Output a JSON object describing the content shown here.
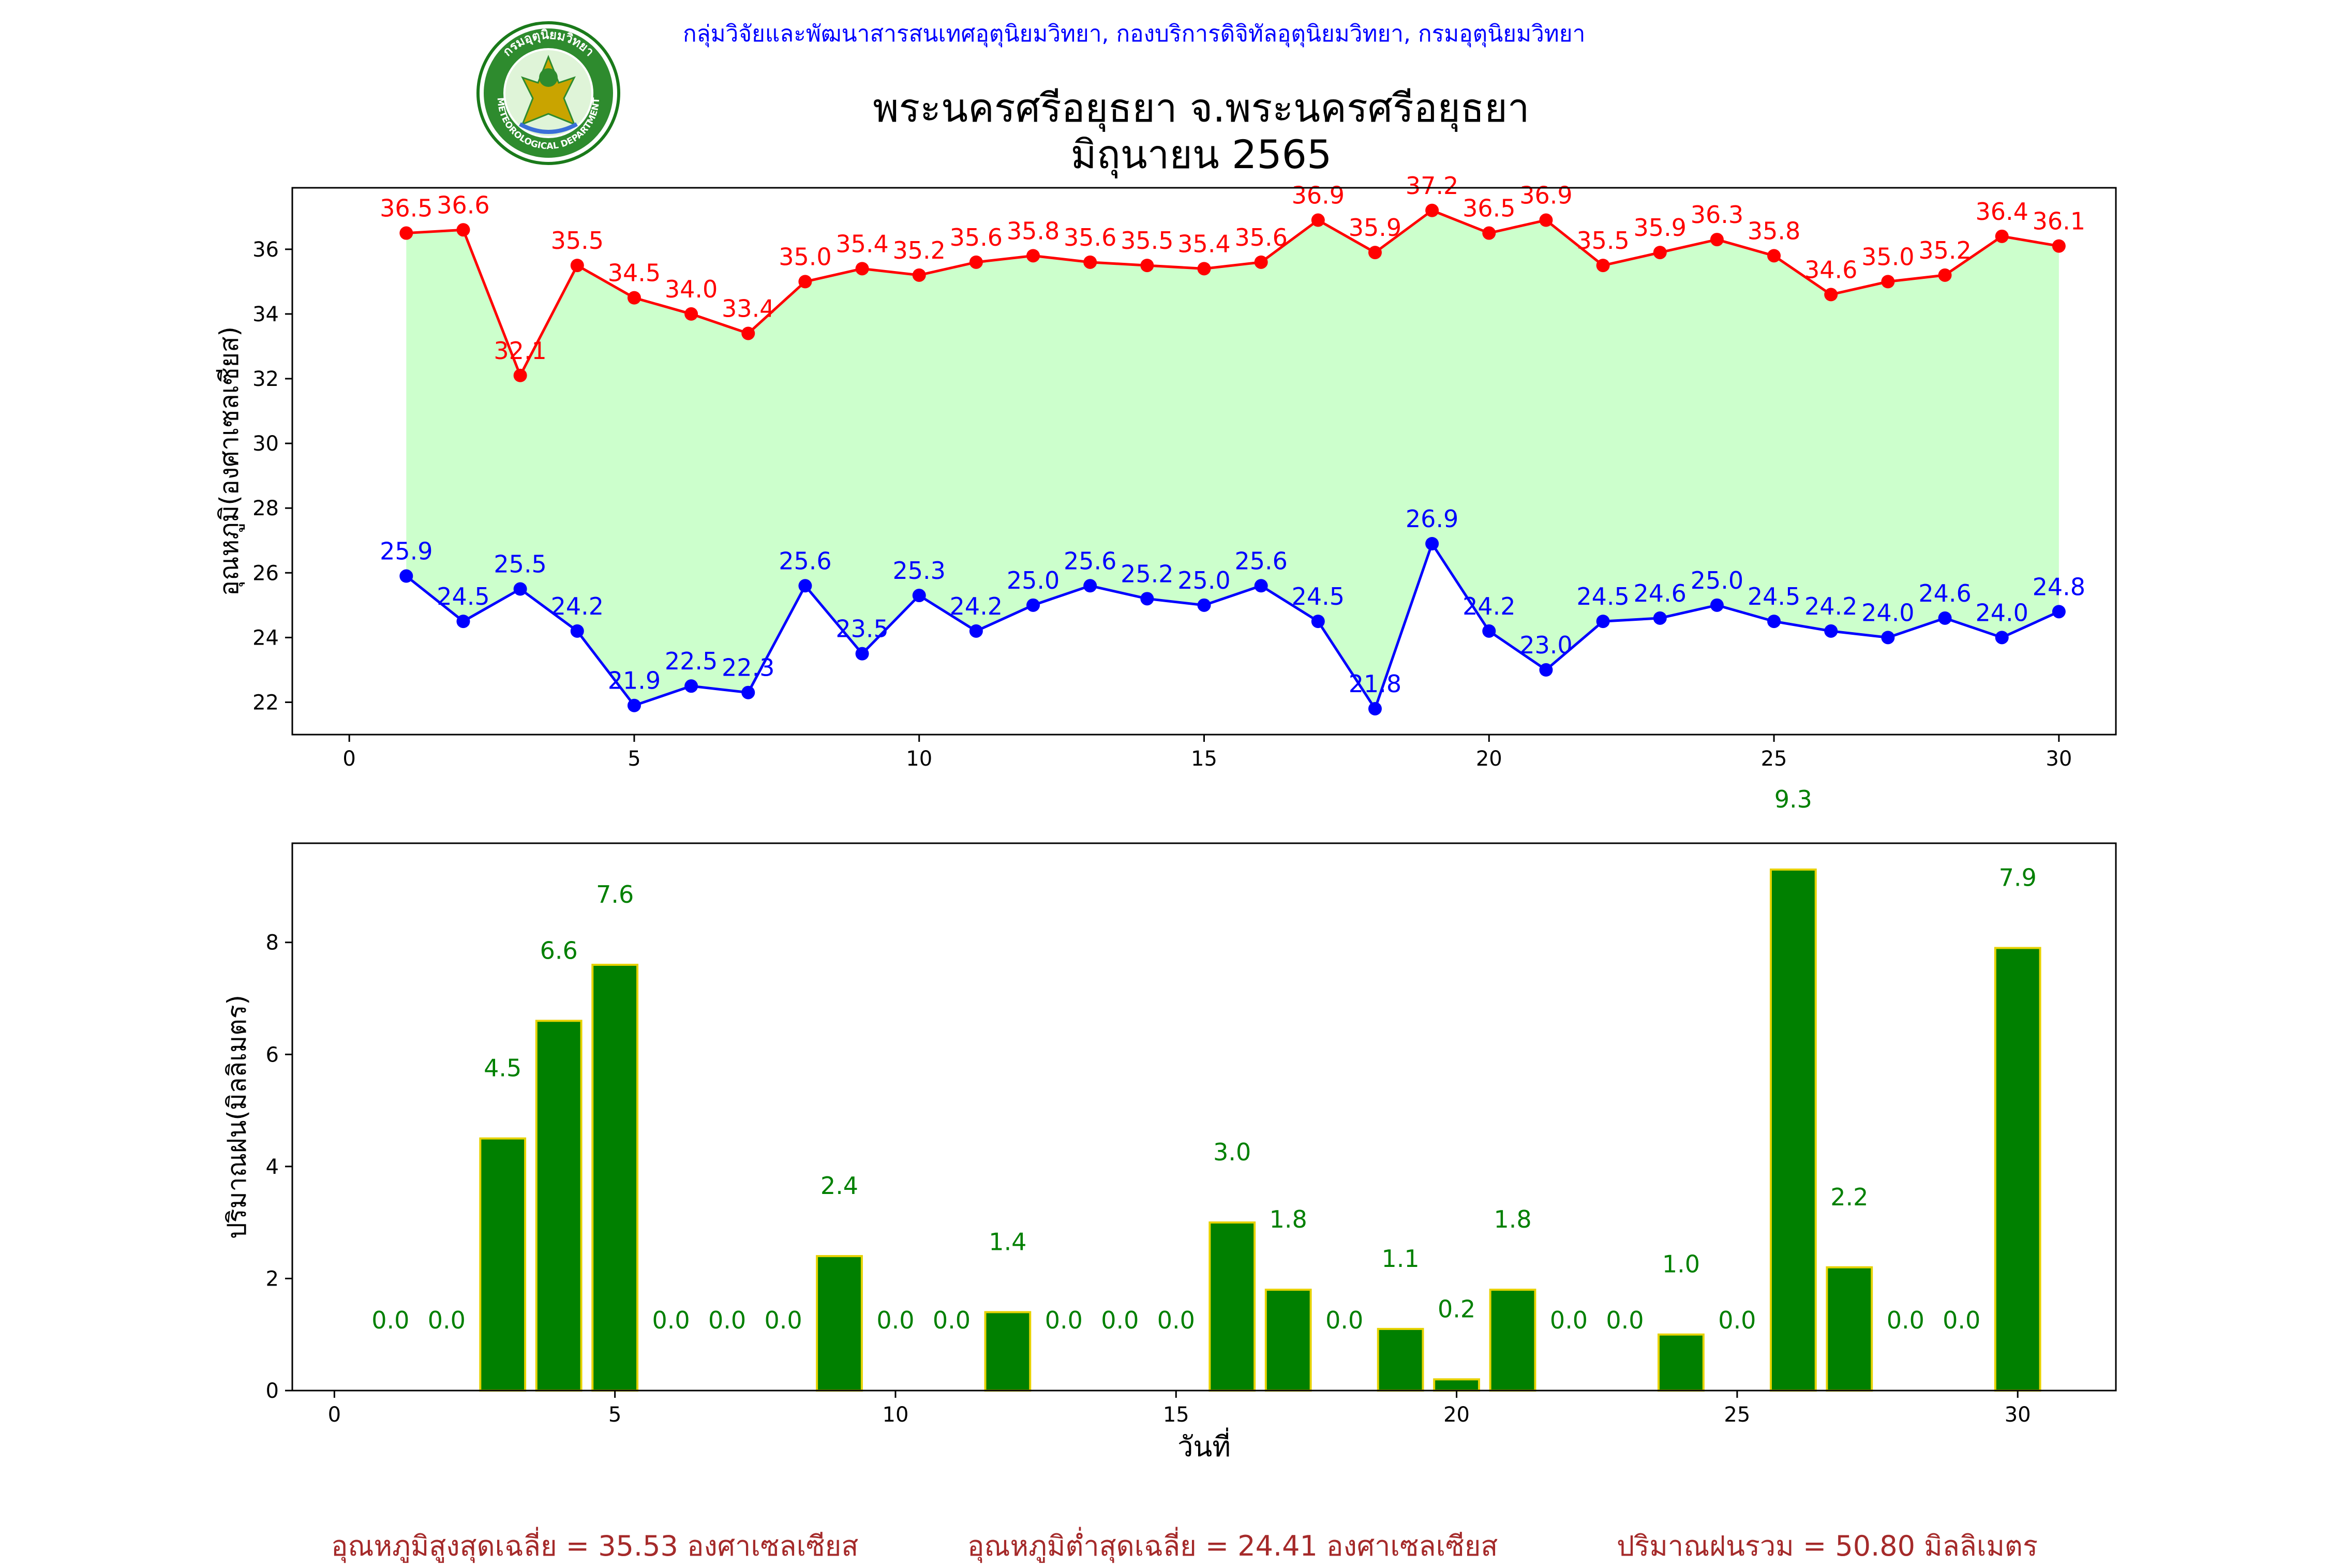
{
  "header": {
    "credit": "กลุ่มวิจัยและพัฒนาสารสนเทศอุตุนิยมวิทยา, กองบริการดิจิทัลอุตุนิยมวิทยา, กรมอุตุนิยมวิทยา",
    "logo_icon": "meteorological-department-seal-icon",
    "logo_text_top": "กรมอุตุนิยมวิทยา",
    "logo_text_bottom": "METEOROLOGICAL DEPARTMENT"
  },
  "chart_data": [
    {
      "type": "line",
      "title": "พระนครศรีอยุธยา จ.พระนครศรีอยุธยา",
      "subtitle": "มิถุนายน 2565",
      "xlabel": "",
      "ylabel": "อุณหภูมิ(องศาเซลเซียส)",
      "x": [
        1,
        2,
        3,
        4,
        5,
        6,
        7,
        8,
        9,
        10,
        11,
        12,
        13,
        14,
        15,
        16,
        17,
        18,
        19,
        20,
        21,
        22,
        23,
        24,
        25,
        26,
        27,
        28,
        29,
        30
      ],
      "xlim": [
        -1,
        31
      ],
      "ylim": [
        21,
        37.9
      ],
      "xticks": [
        0,
        5,
        10,
        15,
        20,
        25,
        30
      ],
      "yticks": [
        22,
        24,
        26,
        28,
        30,
        32,
        34,
        36
      ],
      "grid": false,
      "fill_between": {
        "color": "#ccffcc"
      },
      "series": [
        {
          "color": "#ff0000",
          "values": [
            36.5,
            36.6,
            32.1,
            35.5,
            34.5,
            34.0,
            33.4,
            35.0,
            35.4,
            35.2,
            35.6,
            35.8,
            35.6,
            35.5,
            35.4,
            35.6,
            36.9,
            35.9,
            37.2,
            36.5,
            36.9,
            35.5,
            35.9,
            36.3,
            35.8,
            34.6,
            35.0,
            35.2,
            36.4,
            36.1
          ]
        },
        {
          "color": "#0000ff",
          "values": [
            25.9,
            24.5,
            25.5,
            24.2,
            21.9,
            22.5,
            22.3,
            25.6,
            23.5,
            25.3,
            24.2,
            25.0,
            25.6,
            25.2,
            25.0,
            25.6,
            24.5,
            21.8,
            26.9,
            24.2,
            23.0,
            24.5,
            24.6,
            25.0,
            24.5,
            24.2,
            24.0,
            24.6,
            24.0,
            24.8
          ]
        }
      ]
    },
    {
      "type": "bar",
      "xlabel": "วันที่",
      "ylabel": "ปริมาณฝน(มิลลิเมตร)",
      "categories": [
        1,
        2,
        3,
        4,
        5,
        6,
        7,
        8,
        9,
        10,
        11,
        12,
        13,
        14,
        15,
        16,
        17,
        18,
        19,
        20,
        21,
        22,
        23,
        24,
        25,
        26,
        27,
        28,
        29,
        30
      ],
      "values": [
        0.0,
        0.0,
        4.5,
        6.6,
        7.6,
        0.0,
        0.0,
        0.0,
        2.4,
        0.0,
        0.0,
        1.4,
        0.0,
        0.0,
        0.0,
        3.0,
        1.8,
        0.0,
        1.1,
        0.2,
        1.8,
        0.0,
        0.0,
        1.0,
        0.0,
        9.3,
        2.2,
        0.0,
        0.0,
        7.9
      ],
      "xlim": [
        -0.75,
        31.75
      ],
      "ylim": [
        0,
        9.77
      ],
      "xticks": [
        0,
        5,
        10,
        15,
        20,
        25,
        30
      ],
      "yticks": [
        0,
        2,
        4,
        6,
        8
      ],
      "bar_color": "#008000",
      "edge_color": "#e6d200",
      "label_color": "#008000",
      "grid": false
    }
  ],
  "footer": {
    "avg_max": "อุณหภูมิสูงสุดเฉลี่ย = 35.53 องศาเซลเซียส",
    "avg_min": "อุณหภูมิต่ำสุดเฉลี่ย = 24.41 องศาเซลเซียส",
    "rain_total": "ปริมาณฝนรวม = 50.80 มิลลิเมตร"
  }
}
